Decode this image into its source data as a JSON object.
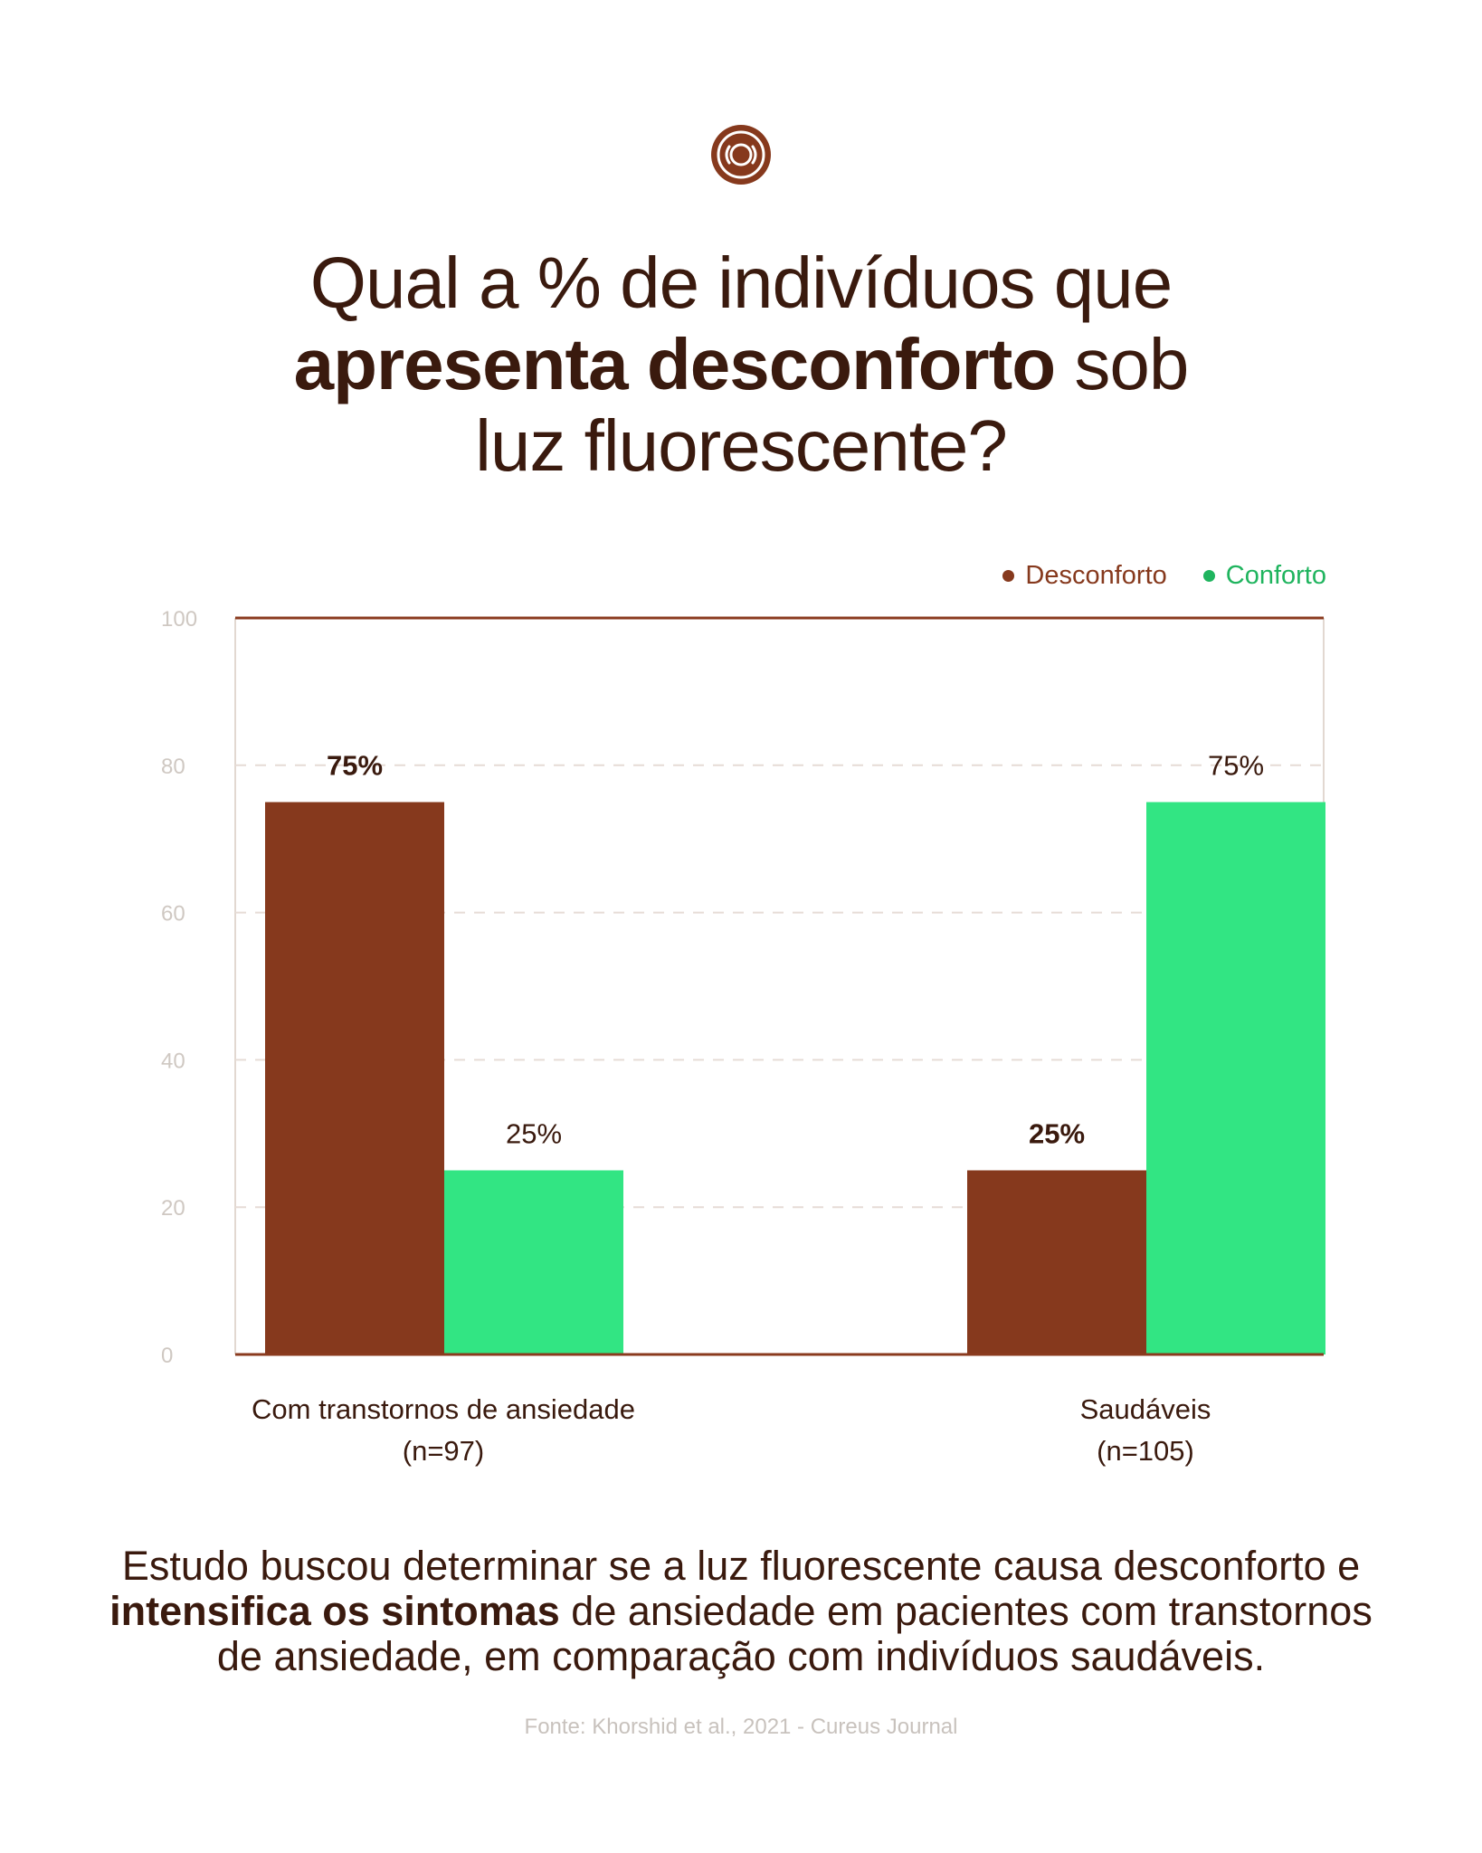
{
  "header": {
    "logo_icon": "concentric-circle-icon",
    "title_line1": "Qual a % de indivíduos que",
    "title_line2_bold": "apresenta desconforto",
    "title_line2_rest": " sob",
    "title_line3": "luz fluorescente?"
  },
  "legend": {
    "items": [
      {
        "label": "Desconforto",
        "color": "#86391d"
      },
      {
        "label": "Conforto",
        "color": "#32e583"
      }
    ]
  },
  "chart_data": {
    "type": "bar",
    "categories": [
      "Com transtornos de ansiedade",
      "Saudáveis"
    ],
    "category_sublabels": [
      "(n=97)",
      "(n=105)"
    ],
    "series": [
      {
        "name": "Desconforto",
        "values": [
          75,
          25
        ],
        "labels": [
          "75%",
          "25%"
        ],
        "color": "#86391d"
      },
      {
        "name": "Conforto",
        "values": [
          25,
          75
        ],
        "labels": [
          "25%",
          "75%"
        ],
        "color": "#32e583"
      }
    ],
    "ylim": [
      0,
      100
    ],
    "yticks": [
      "0",
      "20",
      "40",
      "60",
      "80",
      "100"
    ],
    "grid": true,
    "legend_position": "top-right"
  },
  "caption": {
    "line1": "Estudo buscou determinar se a luz fluorescente causa desconforto e",
    "line2_bold": "intensifica os sintomas",
    "line2_rest": " de ansiedade em pacientes com transtornos",
    "line3": "de ansiedade, em comparação com indivíduos saudáveis."
  },
  "source": "Fonte: Khorshid et al., 2021 - Cureus Journal"
}
